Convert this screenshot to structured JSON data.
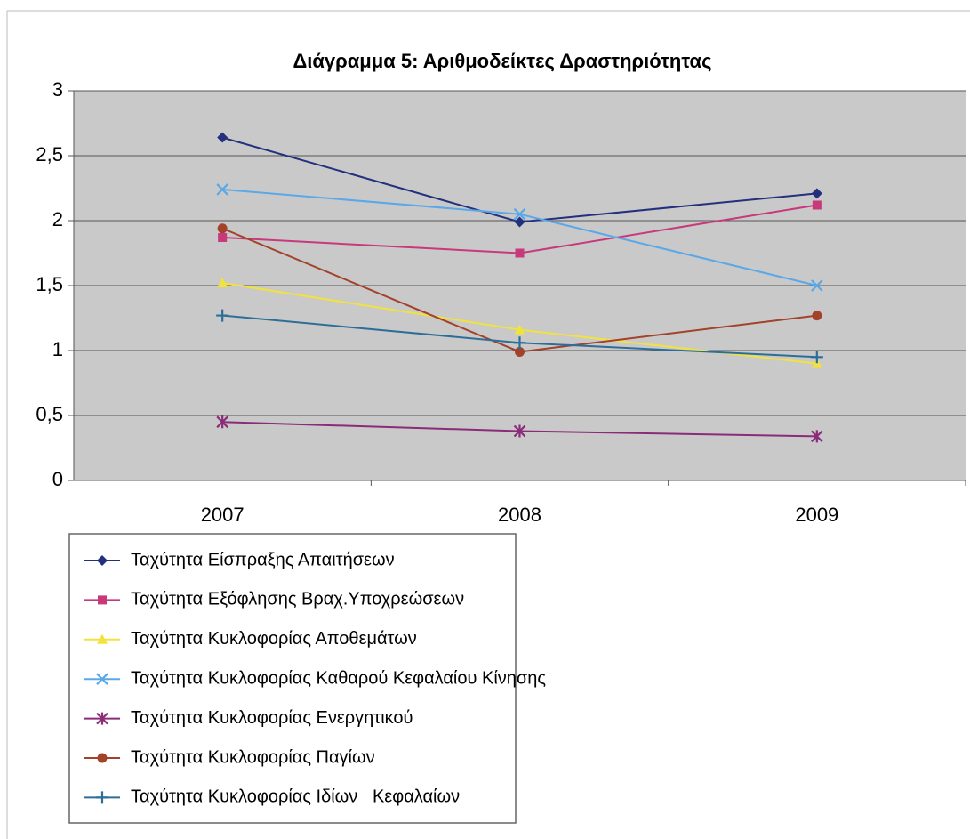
{
  "chart_data": {
    "type": "line",
    "title": "Διάγραμμα 5: Αριθμοδείκτες Δραστηριότητας",
    "categories": [
      "2007",
      "2008",
      "2009"
    ],
    "series": [
      {
        "name": "Ταχύτητα Είσπραξης Απαιτήσεων",
        "color": "#23307e",
        "marker": "diamond",
        "values": [
          2.64,
          1.99,
          2.21
        ]
      },
      {
        "name": "Ταχύτητα Εξόφλησης Βραχ.Υποχρεώσεων",
        "color": "#c8397c",
        "marker": "square",
        "values": [
          1.87,
          1.75,
          2.12
        ]
      },
      {
        "name": "Ταχύτητα Κυκλοφορίας Αποθεμάτων",
        "color": "#f2e23e",
        "marker": "triangle",
        "values": [
          1.52,
          1.16,
          0.9
        ]
      },
      {
        "name": "Ταχύτητα Κυκλοφορίας Καθαρού Κεφαλαίου Κίνησης",
        "color": "#5aa8e8",
        "marker": "x",
        "values": [
          2.24,
          2.05,
          1.5
        ]
      },
      {
        "name": "Ταχύτητα Κυκλοφορίας Ενεργητικού",
        "color": "#8a2c78",
        "marker": "star",
        "values": [
          0.45,
          0.38,
          0.34
        ]
      },
      {
        "name": "Ταχύτητα Κυκλοφορίας Παγίων",
        "color": "#a3422b",
        "marker": "circle",
        "values": [
          1.94,
          0.99,
          1.27
        ]
      },
      {
        "name": "Ταχύτητα Κυκλοφορίας Ιδίων   Κεφαλαίων",
        "color": "#2d6e99",
        "marker": "plus",
        "values": [
          1.27,
          1.06,
          0.95
        ]
      }
    ],
    "ylim": [
      0,
      3
    ],
    "yticks": [
      0,
      {
        "value": 0.5,
        "label": "0,5"
      },
      1,
      {
        "value": 1.5,
        "label": "1,5"
      },
      2,
      {
        "value": 2.5,
        "label": "2,5"
      },
      3
    ],
    "grid": true
  }
}
